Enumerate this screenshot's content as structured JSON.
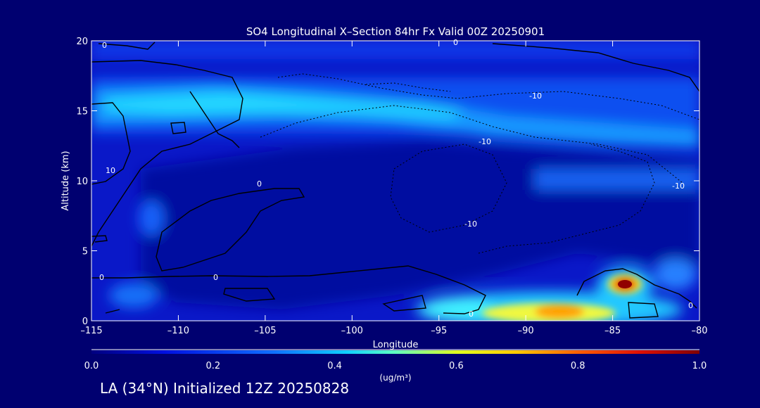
{
  "chart_data": {
    "type": "heatmap",
    "title": "SO4 Longitudinal X–Section 84hr  Fx Valid 00Z 20250901",
    "xlabel": "Longitude",
    "ylabel": "Altitude (km)",
    "xlim": [
      -115,
      -80
    ],
    "ylim": [
      0,
      20
    ],
    "x_ticks": [
      -115,
      -110,
      -105,
      -100,
      -95,
      -90,
      -85,
      -80
    ],
    "x_tick_labels": [
      "–115",
      "–110",
      "–105",
      "–100",
      "–95",
      "–90",
      "–85",
      "–80"
    ],
    "y_ticks": [
      0,
      5,
      10,
      15,
      20
    ],
    "y_tick_labels": [
      "0",
      "5",
      "10",
      "15",
      "20"
    ],
    "colorbar": {
      "label": "(ug/m³)",
      "range": [
        0.0,
        1.0
      ],
      "ticks": [
        0.0,
        0.2,
        0.4,
        0.6,
        0.8,
        1.0
      ],
      "tick_labels": [
        "0.0",
        "0.2",
        "0.4",
        "0.6",
        "0.8",
        "1.0"
      ]
    },
    "features": [
      {
        "name": "upper layer maximum",
        "lon_range": [
          -115,
          -94
        ],
        "alt_km": 15.3,
        "value": 0.4
      },
      {
        "name": "boundary layer plume",
        "lon_range": [
          -96,
          -86
        ],
        "alt_km": 0.6,
        "value": 0.6
      },
      {
        "name": "peak",
        "lon": -84.3,
        "alt_km": 2.6,
        "value": 1.0
      }
    ],
    "contour_labels": [
      "0",
      "0",
      "0",
      "0",
      "0",
      "0",
      "0",
      "10",
      "-10",
      "-10",
      "-10",
      "-10"
    ]
  },
  "colors": {
    "background": "#000070",
    "plot_base": "#0a18c8",
    "line": "#000000",
    "text": "#ffffff"
  },
  "footer": {
    "caption": "LA (34°N) Initialized 12Z 20250828"
  }
}
